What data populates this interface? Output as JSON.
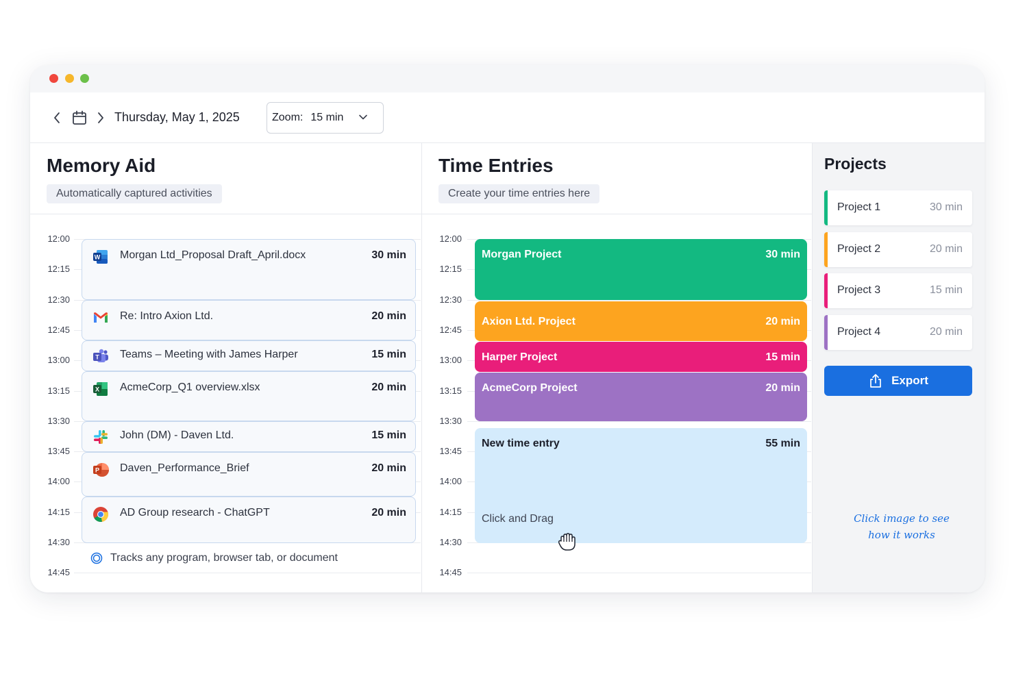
{
  "window": {
    "traffic_lights": [
      "#f0473d",
      "#f6b72b",
      "#6cc04a"
    ]
  },
  "toolbar": {
    "prev_icon": "chevron-left-icon",
    "calendar_icon": "calendar-icon",
    "next_icon": "chevron-right-icon",
    "date": "Thursday, May 1, 2025",
    "zoom_label": "Zoom:",
    "zoom_value": "15 min",
    "zoom_icon": "chevron-down-icon"
  },
  "memory": {
    "title": "Memory Aid",
    "subtitle": "Automatically captured activities",
    "times": [
      "12:00",
      "12:15",
      "12:30",
      "12:45",
      "13:00",
      "13:15",
      "13:30",
      "13:45",
      "14:00",
      "14:15",
      "14:30",
      "14:45"
    ],
    "activities": [
      {
        "app": "word-icon",
        "name": "Morgan Ltd_Proposal Draft_April.docx",
        "duration": "30 min"
      },
      {
        "app": "gmail-icon",
        "name": "Re: Intro Axion Ltd.",
        "duration": "20 min"
      },
      {
        "app": "teams-icon",
        "name": "Teams – Meeting with James Harper",
        "duration": "15 min"
      },
      {
        "app": "excel-icon",
        "name": "AcmeCorp_Q1 overview.xlsx",
        "duration": "20 min"
      },
      {
        "app": "slack-icon",
        "name": "John (DM) - Daven Ltd.",
        "duration": "15 min"
      },
      {
        "app": "powerpoint-icon",
        "name": "Daven_Performance_Brief",
        "duration": "20 min"
      },
      {
        "app": "chrome-icon",
        "name": "AD Group research - ChatGPT",
        "duration": "20 min"
      }
    ],
    "tracks_text": "Tracks any program, browser tab, or document"
  },
  "time_entries": {
    "title": "Time Entries",
    "subtitle": "Create your time entries here",
    "times": [
      "12:00",
      "12:15",
      "12:30",
      "12:45",
      "13:00",
      "13:15",
      "13:30",
      "13:45",
      "14:00",
      "14:15",
      "14:30",
      "14:45"
    ],
    "entries": [
      {
        "name": "Morgan Project",
        "duration": "30 min",
        "color": "#13b981"
      },
      {
        "name": "Axion Ltd. Project",
        "duration": "20 min",
        "color": "#fda41f"
      },
      {
        "name": "Harper Project",
        "duration": "15 min",
        "color": "#e91e7a"
      },
      {
        "name": "AcmeCorp Project",
        "duration": "20 min",
        "color": "#9d72c4"
      }
    ],
    "new_entry": {
      "name": "New time entry",
      "duration": "55 min",
      "hint": "Click and Drag",
      "color": "#d4ebfc"
    },
    "cursor_icon": "grab-hand-icon"
  },
  "projects": {
    "title": "Projects",
    "items": [
      {
        "name": "Project 1",
        "duration": "30 min",
        "color": "#13b981"
      },
      {
        "name": "Project 2",
        "duration": "20 min",
        "color": "#fda41f"
      },
      {
        "name": "Project 3",
        "duration": "15 min",
        "color": "#e91e7a"
      },
      {
        "name": "Project 4",
        "duration": "20 min",
        "color": "#9d72c4"
      }
    ],
    "export_label": "Export",
    "export_icon": "share-export-icon",
    "note_line1": "Click image to see",
    "note_line2": "how it works"
  }
}
